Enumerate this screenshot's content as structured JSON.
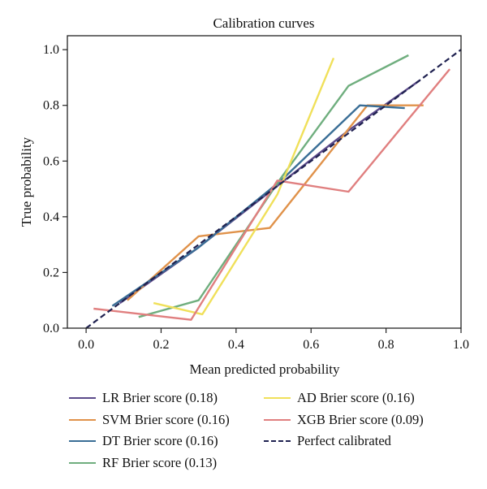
{
  "chart_data": {
    "type": "line",
    "title": "Calibration curves",
    "xlabel": "Mean predicted probability",
    "ylabel": "True probability",
    "xlim": [
      -0.05,
      1.0
    ],
    "ylim": [
      0.0,
      1.05
    ],
    "xticks": [
      "0.0",
      "0.2",
      "0.4",
      "0.6",
      "0.8",
      "1.0"
    ],
    "yticks": [
      "0.0",
      "0.2",
      "0.4",
      "0.6",
      "0.8",
      "1.0"
    ],
    "grid": false,
    "legend_position": "below",
    "series": [
      {
        "name": "LR Brier score (0.18)",
        "color": "#5b4a8a",
        "dashed": false,
        "points": [
          [
            0.09,
            0.09
          ],
          [
            0.29,
            0.28
          ],
          [
            0.5,
            0.5
          ],
          [
            0.7,
            0.71
          ],
          [
            0.89,
            0.89
          ]
        ]
      },
      {
        "name": "SVM Brier score (0.16)",
        "color": "#e0924a",
        "dashed": false,
        "points": [
          [
            0.11,
            0.1
          ],
          [
            0.3,
            0.33
          ],
          [
            0.49,
            0.36
          ],
          [
            0.75,
            0.8
          ],
          [
            0.9,
            0.8
          ]
        ]
      },
      {
        "name": "DT Brier score (0.16)",
        "color": "#3a6e96",
        "dashed": false,
        "points": [
          [
            0.07,
            0.08
          ],
          [
            0.3,
            0.29
          ],
          [
            0.52,
            0.53
          ],
          [
            0.73,
            0.8
          ],
          [
            0.85,
            0.79
          ]
        ]
      },
      {
        "name": "RF Brier score (0.13)",
        "color": "#6fae7e",
        "dashed": false,
        "points": [
          [
            0.14,
            0.04
          ],
          [
            0.3,
            0.1
          ],
          [
            0.52,
            0.54
          ],
          [
            0.7,
            0.87
          ],
          [
            0.86,
            0.98
          ]
        ]
      },
      {
        "name": "AD Brier score (0.16)",
        "color": "#f0e05a",
        "dashed": false,
        "points": [
          [
            0.18,
            0.09
          ],
          [
            0.31,
            0.05
          ],
          [
            0.51,
            0.48
          ],
          [
            0.66,
            0.97
          ]
        ]
      },
      {
        "name": "XGB Brier score (0.09)",
        "color": "#e07f7f",
        "dashed": false,
        "points": [
          [
            0.02,
            0.07
          ],
          [
            0.28,
            0.03
          ],
          [
            0.51,
            0.53
          ],
          [
            0.7,
            0.49
          ],
          [
            0.97,
            0.93
          ]
        ]
      },
      {
        "name": "Perfect calibrated",
        "color": "#1f2150",
        "dashed": true,
        "points": [
          [
            0.0,
            0.0
          ],
          [
            1.0,
            1.0
          ]
        ]
      }
    ]
  }
}
